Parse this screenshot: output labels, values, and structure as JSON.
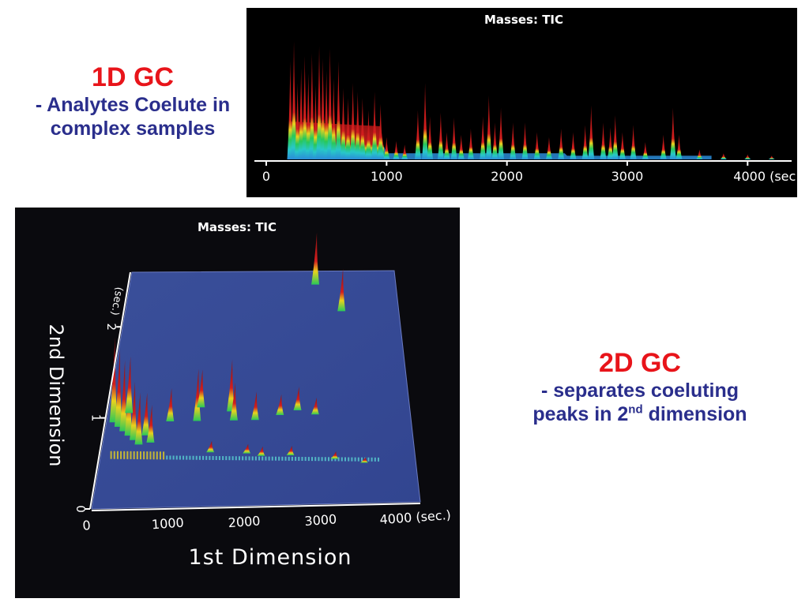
{
  "headings": {
    "gc1d": {
      "title": "1D GC",
      "line1": "- Analytes Coelute in",
      "line2": "complex samples"
    },
    "gc2d": {
      "title": "2D GC",
      "line1": "- separates coeluting",
      "line2_pre": "peaks in 2",
      "line2_sup": "nd",
      "line2_post": " dimension"
    }
  },
  "colors": {
    "title": "#e8141a",
    "subtitle": "#2a2e8c",
    "surface": "#3a4f9a",
    "peak_high": "#d21e1e",
    "peak_mid": "#e8d21e",
    "peak_low": "#28c85a",
    "peak_base": "#2a8cd8"
  },
  "chart_data": [
    {
      "type": "bar",
      "title": "Masses: TIC",
      "xlabel": "",
      "ylabel": "",
      "xlim": [
        0,
        4300
      ],
      "x_ticks": [
        {
          "value": 0,
          "label": "0"
        },
        {
          "value": 1000,
          "label": "1000"
        },
        {
          "value": 2000,
          "label": "2000"
        },
        {
          "value": 3000,
          "label": "3000"
        },
        {
          "value": 4000,
          "label": "4000 (sec.)"
        }
      ],
      "grid": false,
      "legend": "none",
      "peaks": {
        "x": [
          200,
          230,
          260,
          290,
          320,
          350,
          380,
          410,
          440,
          470,
          500,
          530,
          560,
          600,
          640,
          680,
          720,
          760,
          800,
          850,
          900,
          950,
          1000,
          1080,
          1150,
          1260,
          1320,
          1360,
          1450,
          1500,
          1560,
          1620,
          1700,
          1800,
          1850,
          1900,
          1950,
          2050,
          2150,
          2250,
          2350,
          2450,
          2550,
          2650,
          2700,
          2800,
          2860,
          2900,
          2960,
          3050,
          3150,
          3300,
          3380,
          3430,
          3600,
          3800,
          4000,
          4200
        ],
        "y": [
          0.8,
          0.96,
          0.62,
          0.74,
          0.84,
          0.7,
          0.86,
          0.6,
          0.92,
          0.82,
          0.72,
          0.9,
          0.66,
          0.8,
          0.58,
          0.5,
          0.62,
          0.55,
          0.5,
          0.4,
          0.55,
          0.45,
          0.18,
          0.15,
          0.12,
          0.4,
          0.62,
          0.35,
          0.38,
          0.22,
          0.34,
          0.2,
          0.25,
          0.35,
          0.52,
          0.3,
          0.42,
          0.3,
          0.3,
          0.22,
          0.18,
          0.25,
          0.22,
          0.28,
          0.44,
          0.3,
          0.26,
          0.36,
          0.22,
          0.28,
          0.14,
          0.2,
          0.42,
          0.2,
          0.08,
          0.05,
          0.04,
          0.03
        ]
      }
    },
    {
      "type": "surface3d",
      "title": "Masses: TIC",
      "xlabel": "1st Dimension",
      "ylabel": "2nd Dimension",
      "xlim": [
        0,
        4300
      ],
      "ylim": [
        0,
        2.6
      ],
      "x_ticks": [
        {
          "value": 0,
          "label": "0"
        },
        {
          "value": 1000,
          "label": "1000"
        },
        {
          "value": 2000,
          "label": "2000"
        },
        {
          "value": 3000,
          "label": "3000"
        },
        {
          "value": 4000,
          "label": "4000 (sec.)"
        }
      ],
      "y_ticks": [
        {
          "value": 0,
          "label": "0"
        },
        {
          "value": 1,
          "label": "1"
        },
        {
          "value": 2,
          "label": "2"
        }
      ],
      "y_unit": "(sec.)",
      "grid": false,
      "legend": "none",
      "peaks": {
        "x": [
          100,
          180,
          260,
          340,
          420,
          500,
          580,
          660,
          300,
          900,
          1280,
          1320,
          1750,
          1800,
          2100,
          2450,
          2700,
          2950,
          3000,
          3400,
          2200,
          2600,
          3200,
          3600,
          1500,
          2000
        ],
        "y": [
          0.95,
          0.9,
          0.85,
          0.8,
          0.75,
          0.7,
          0.8,
          0.72,
          1.05,
          0.95,
          0.95,
          1.1,
          1.05,
          0.95,
          0.95,
          1.0,
          1.05,
          1.0,
          2.45,
          2.15,
          0.55,
          0.55,
          0.5,
          0.45,
          0.6,
          0.58
        ],
        "h": [
          0.9,
          0.82,
          0.75,
          0.7,
          0.62,
          0.55,
          0.45,
          0.4,
          0.6,
          0.35,
          0.55,
          0.4,
          0.55,
          0.4,
          0.3,
          0.22,
          0.25,
          0.18,
          0.55,
          0.45,
          0.1,
          0.1,
          0.08,
          0.06,
          0.12,
          0.1
        ]
      }
    }
  ]
}
